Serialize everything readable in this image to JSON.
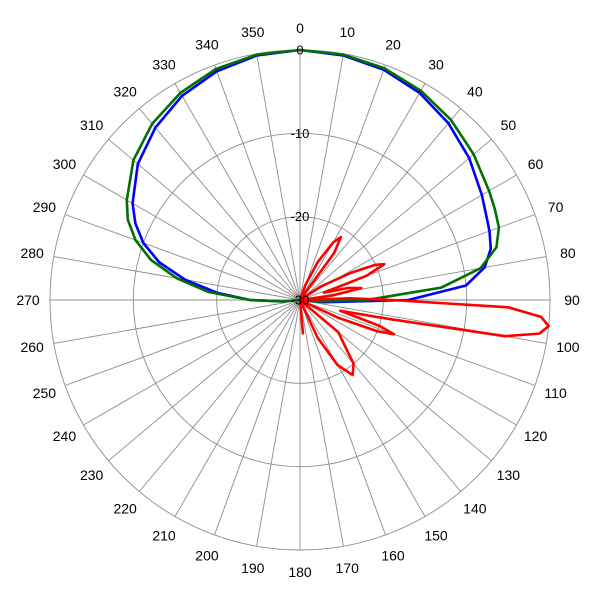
{
  "chart_data": {
    "type": "polar-line",
    "angle_unit": "degrees",
    "angle_zero": "top",
    "angle_direction": "clockwise",
    "angle_ticks": [
      0,
      10,
      20,
      30,
      40,
      50,
      60,
      70,
      80,
      90,
      100,
      110,
      120,
      130,
      140,
      150,
      160,
      170,
      180,
      190,
      200,
      210,
      220,
      230,
      240,
      250,
      260,
      270,
      280,
      290,
      300,
      310,
      320,
      330,
      340,
      350
    ],
    "radial_unit": "dB",
    "radial_range": [
      -30,
      0
    ],
    "radial_ticks": [
      0,
      -10,
      -20,
      -30
    ],
    "radial_tick_labels": [
      "0",
      "-10",
      "-20",
      "-30"
    ],
    "grid": true,
    "legend": "none",
    "series": [
      {
        "color": "#0000ff",
        "points": [
          [
            0,
            0
          ],
          [
            10,
            -0.2
          ],
          [
            20,
            -0.6
          ],
          [
            30,
            -1.3
          ],
          [
            40,
            -2.3
          ],
          [
            50,
            -3.5
          ],
          [
            60,
            -4.8
          ],
          [
            65,
            -5.4
          ],
          [
            70,
            -5.8
          ],
          [
            75,
            -6.3
          ],
          [
            80,
            -7.5
          ],
          [
            85,
            -10
          ],
          [
            90,
            -17
          ],
          [
            95,
            -27
          ],
          [
            100,
            -30
          ],
          [
            180,
            -30
          ],
          [
            260,
            -30
          ],
          [
            265,
            -28
          ],
          [
            270,
            -24
          ],
          [
            275,
            -20
          ],
          [
            280,
            -16
          ],
          [
            285,
            -12.5
          ],
          [
            290,
            -10
          ],
          [
            295,
            -8.2
          ],
          [
            300,
            -6.8
          ],
          [
            310,
            -4.6
          ],
          [
            320,
            -3
          ],
          [
            330,
            -1.7
          ],
          [
            340,
            -0.8
          ],
          [
            350,
            -0.2
          ],
          [
            360,
            0
          ]
        ]
      },
      {
        "color": "#007000",
        "points": [
          [
            0,
            0
          ],
          [
            10,
            -0.1
          ],
          [
            20,
            -0.4
          ],
          [
            30,
            -1
          ],
          [
            40,
            -1.8
          ],
          [
            50,
            -2.8
          ],
          [
            60,
            -3.8
          ],
          [
            65,
            -4.2
          ],
          [
            70,
            -4.6
          ],
          [
            75,
            -5.6
          ],
          [
            80,
            -8
          ],
          [
            85,
            -13
          ],
          [
            90,
            -22
          ],
          [
            95,
            -28
          ],
          [
            100,
            -30
          ],
          [
            180,
            -30
          ],
          [
            260,
            -30
          ],
          [
            265,
            -28
          ],
          [
            270,
            -24
          ],
          [
            275,
            -19
          ],
          [
            280,
            -15
          ],
          [
            285,
            -11.5
          ],
          [
            290,
            -9
          ],
          [
            295,
            -7.2
          ],
          [
            300,
            -6
          ],
          [
            310,
            -3.9
          ],
          [
            320,
            -2.4
          ],
          [
            330,
            -1.3
          ],
          [
            340,
            -0.5
          ],
          [
            350,
            -0.1
          ],
          [
            360,
            0
          ]
        ]
      },
      {
        "color": "#ff0000",
        "points": [
          [
            0,
            -30
          ],
          [
            15,
            -30
          ],
          [
            20,
            -28
          ],
          [
            25,
            -25
          ],
          [
            30,
            -22
          ],
          [
            33,
            -21
          ],
          [
            36,
            -23
          ],
          [
            40,
            -30
          ],
          [
            52,
            -30
          ],
          [
            57,
            -27
          ],
          [
            62,
            -23
          ],
          [
            65,
            -20
          ],
          [
            67,
            -19
          ],
          [
            70,
            -21.5
          ],
          [
            73,
            -27
          ],
          [
            76,
            -24
          ],
          [
            79,
            -22.5
          ],
          [
            82,
            -26
          ],
          [
            86,
            -30
          ],
          [
            88,
            -24
          ],
          [
            90,
            -19
          ],
          [
            92,
            -5
          ],
          [
            94,
            -1
          ],
          [
            96,
            0
          ],
          [
            98,
            -1
          ],
          [
            100,
            -5
          ],
          [
            102,
            -19
          ],
          [
            105,
            -25
          ],
          [
            108,
            -20
          ],
          [
            110,
            -18
          ],
          [
            112,
            -20
          ],
          [
            115,
            -25
          ],
          [
            120,
            -30
          ],
          [
            130,
            -24
          ],
          [
            140,
            -20
          ],
          [
            145,
            -19
          ],
          [
            150,
            -21
          ],
          [
            155,
            -25
          ],
          [
            160,
            -30
          ],
          [
            175,
            -26
          ],
          [
            180,
            -30
          ],
          [
            360,
            -30
          ]
        ]
      }
    ]
  }
}
